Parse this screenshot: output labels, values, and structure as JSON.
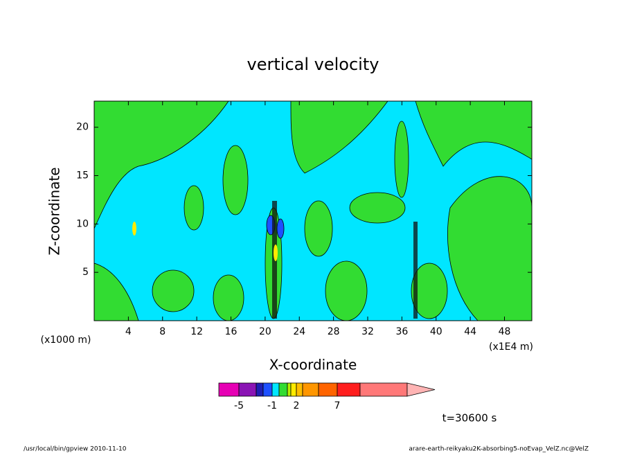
{
  "chart_data": {
    "type": "contour",
    "title": "vertical velocity",
    "x_label": "X-coordinate",
    "y_label": "Z-coordinate",
    "x_unit": "(x1000 m)",
    "x_unit_right": "(x1E4 m)",
    "xlim": [
      0,
      51.2
    ],
    "ylim": [
      0,
      22.7
    ],
    "xticks": [
      4,
      8,
      12,
      16,
      20,
      24,
      28,
      32,
      36,
      40,
      44,
      48
    ],
    "yticks": [
      5,
      10,
      15,
      20
    ],
    "colorbar": {
      "colors": [
        "#e600b4",
        "#8a14b4",
        "#1e1eb4",
        "#1e50ff",
        "#00e6ff",
        "#32dc32",
        "#b4f000",
        "#ffeb00",
        "#ffbe00",
        "#ff9600",
        "#ff6400",
        "#ff1e1e",
        "#ff7878",
        "#ffb4b4"
      ],
      "tick_labels": [
        -5,
        -1,
        2,
        7
      ]
    },
    "time_label": "t=30600 s",
    "footer_left": "/usr/local/bin/gpview  2010-11-10",
    "footer_right": "arare-earth-reikyaku2K-absorbing5-noEvap_VelZ.nc@VelZ"
  }
}
